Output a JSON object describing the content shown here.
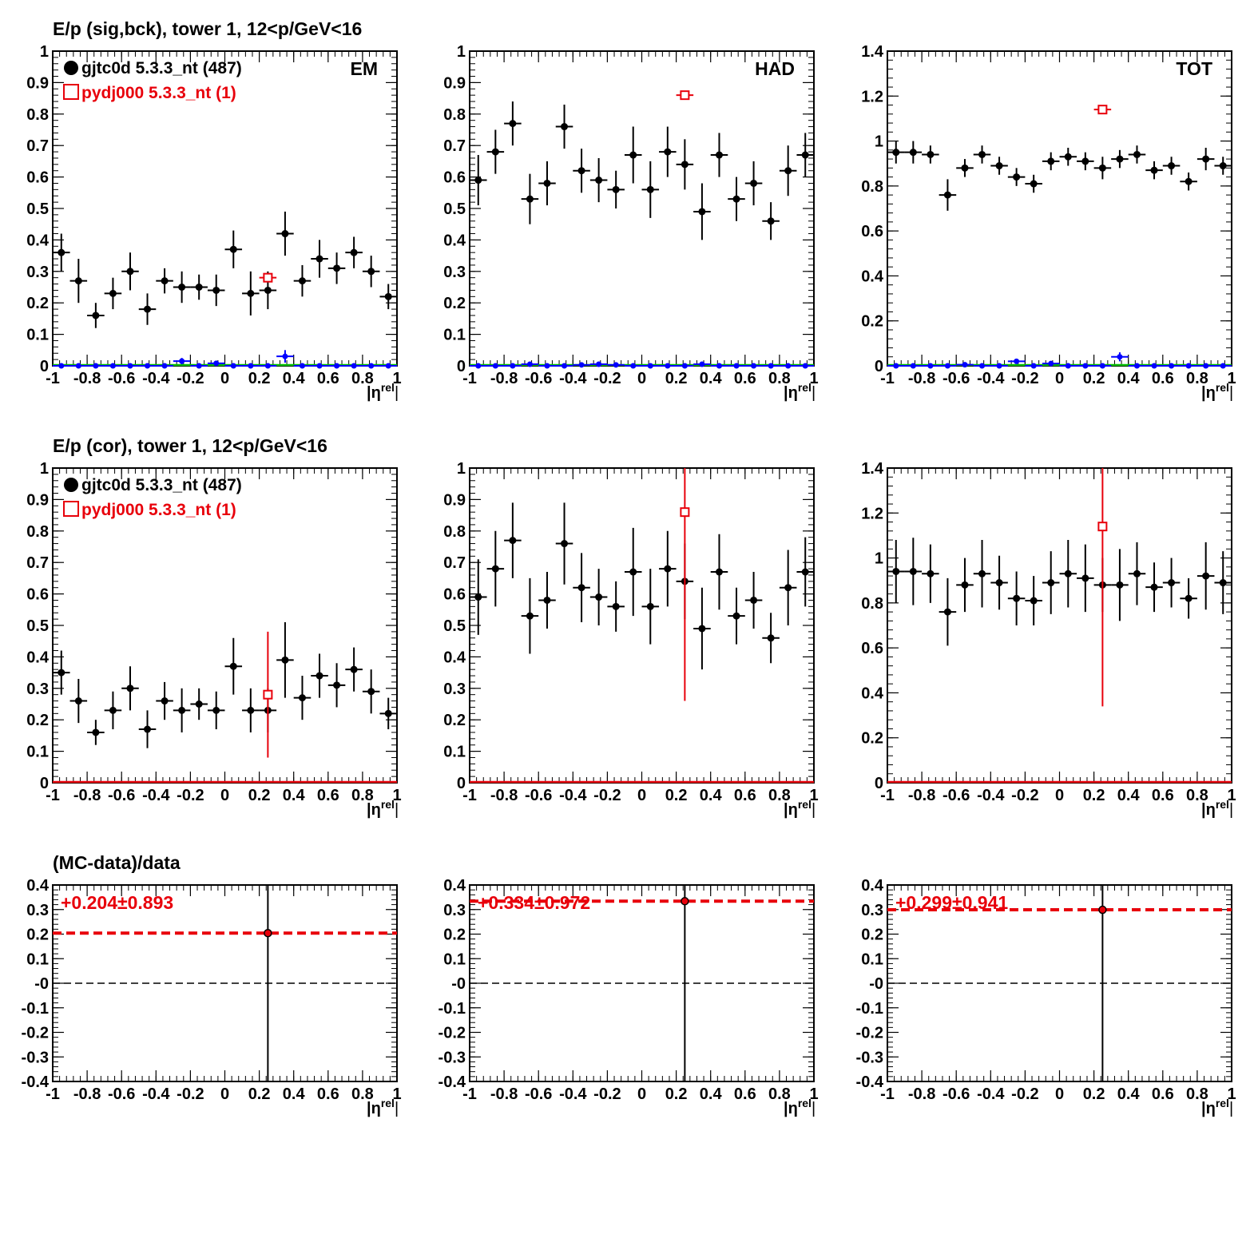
{
  "rows": [
    {
      "title": "E/p (sig,bck), tower 1, 12<p/GeV<16"
    },
    {
      "title": "E/p (cor), tower 1, 12<p/GeV<16"
    },
    {
      "title": "(MC-data)/data"
    }
  ],
  "legend": {
    "data_label": "gjtc0d 5.3.3_nt (487)",
    "mc_label": "pydj000 5.3.3_nt (1)"
  },
  "xlabel": "|η^rel|",
  "x_ticks": [
    "-1",
    "-0.8",
    "-0.6",
    "-0.4",
    "-0.2",
    "0",
    "0.2",
    "0.4",
    "0.6",
    "0.8",
    "1"
  ],
  "colors": {
    "data": "#000000",
    "mc": "#e8000b",
    "bck": "#0000ff",
    "zero": "#00c000"
  },
  "chart_data": [
    {
      "id": "sig-em",
      "type": "scatter",
      "panel_label": "EM",
      "ylim": [
        0,
        1
      ],
      "xlim": [
        -1,
        1
      ],
      "y_ticks": [
        "0",
        "0.1",
        "0.2",
        "0.3",
        "0.4",
        "0.5",
        "0.6",
        "0.7",
        "0.8",
        "0.9",
        "1"
      ],
      "legend": "top-left",
      "series": [
        {
          "name": "gjtc0d 5.3.3_nt (487)",
          "x": [
            -0.95,
            -0.85,
            -0.75,
            -0.65,
            -0.55,
            -0.45,
            -0.35,
            -0.25,
            -0.15,
            -0.05,
            0.05,
            0.15,
            0.25,
            0.35,
            0.45,
            0.55,
            0.65,
            0.75,
            0.85,
            0.95
          ],
          "y": [
            0.36,
            0.27,
            0.16,
            0.23,
            0.3,
            0.18,
            0.27,
            0.25,
            0.25,
            0.24,
            0.37,
            0.23,
            0.24,
            0.42,
            0.27,
            0.34,
            0.31,
            0.36,
            0.3,
            0.22
          ],
          "err": [
            0.06,
            0.07,
            0.04,
            0.05,
            0.06,
            0.05,
            0.04,
            0.05,
            0.04,
            0.05,
            0.06,
            0.07,
            0.06,
            0.07,
            0.05,
            0.06,
            0.05,
            0.05,
            0.05,
            0.04
          ]
        },
        {
          "name": "pydj000 5.3.3_nt (1)",
          "x": [
            0.25
          ],
          "y": [
            0.28
          ],
          "err": [
            0
          ]
        },
        {
          "x": [
            -0.95,
            -0.85,
            -0.75,
            -0.65,
            -0.55,
            -0.45,
            -0.35,
            -0.25,
            -0.15,
            -0.05,
            0.05,
            0.15,
            0.25,
            0.35,
            0.45,
            0.55,
            0.65,
            0.75,
            0.85,
            0.95
          ],
          "y": [
            0.0,
            0.0,
            0.0,
            0.0,
            0.0,
            0.0,
            0.0,
            0.015,
            0.0,
            0.008,
            0.0,
            0.0,
            0.0,
            0.03,
            0.0,
            0.0,
            0.0,
            0.0,
            0.0,
            0.0
          ],
          "err": [
            0,
            0,
            0,
            0,
            0,
            0,
            0,
            0.01,
            0,
            0,
            0,
            0,
            0,
            0.02,
            0,
            0,
            0,
            0,
            0,
            0
          ]
        }
      ]
    },
    {
      "id": "sig-had",
      "type": "scatter",
      "panel_label": "HAD",
      "ylim": [
        0,
        1
      ],
      "xlim": [
        -1,
        1
      ],
      "y_ticks": [
        "0",
        "0.1",
        "0.2",
        "0.3",
        "0.4",
        "0.5",
        "0.6",
        "0.7",
        "0.8",
        "0.9",
        "1"
      ],
      "series": [
        {
          "name": "gjtc0d 5.3.3_nt (487)",
          "x": [
            -0.95,
            -0.85,
            -0.75,
            -0.65,
            -0.55,
            -0.45,
            -0.35,
            -0.25,
            -0.15,
            -0.05,
            0.05,
            0.15,
            0.25,
            0.35,
            0.45,
            0.55,
            0.65,
            0.75,
            0.85,
            0.95
          ],
          "y": [
            0.59,
            0.68,
            0.77,
            0.53,
            0.58,
            0.76,
            0.62,
            0.59,
            0.56,
            0.67,
            0.56,
            0.68,
            0.64,
            0.49,
            0.67,
            0.53,
            0.58,
            0.46,
            0.62,
            0.67
          ],
          "err": [
            0.08,
            0.07,
            0.07,
            0.08,
            0.07,
            0.07,
            0.07,
            0.07,
            0.06,
            0.09,
            0.09,
            0.08,
            0.08,
            0.09,
            0.07,
            0.07,
            0.07,
            0.06,
            0.08,
            0.07
          ]
        },
        {
          "name": "pydj000 5.3.3_nt (1)",
          "x": [
            0.25
          ],
          "y": [
            0.86
          ],
          "err": [
            0
          ]
        },
        {
          "x": [
            -0.95,
            -0.85,
            -0.75,
            -0.65,
            -0.55,
            -0.45,
            -0.35,
            -0.25,
            -0.15,
            -0.05,
            0.05,
            0.15,
            0.25,
            0.35,
            0.45,
            0.55,
            0.65,
            0.75,
            0.85,
            0.95
          ],
          "y": [
            0,
            0,
            0,
            0.005,
            0,
            0,
            0.003,
            0.005,
            0.003,
            0,
            0,
            0,
            0,
            0.005,
            0,
            0,
            0,
            0,
            0,
            0
          ],
          "err": [
            0,
            0,
            0,
            0,
            0,
            0,
            0,
            0,
            0,
            0,
            0,
            0,
            0,
            0,
            0,
            0,
            0,
            0,
            0,
            0
          ]
        }
      ]
    },
    {
      "id": "sig-tot",
      "type": "scatter",
      "panel_label": "TOT",
      "ylim": [
        0,
        1.4
      ],
      "xlim": [
        -1,
        1
      ],
      "y_ticks": [
        "0",
        "0.2",
        "0.4",
        "0.6",
        "0.8",
        "1",
        "1.2",
        "1.4"
      ],
      "series": [
        {
          "name": "gjtc0d 5.3.3_nt (487)",
          "x": [
            -0.95,
            -0.85,
            -0.75,
            -0.65,
            -0.55,
            -0.45,
            -0.35,
            -0.25,
            -0.15,
            -0.05,
            0.05,
            0.15,
            0.25,
            0.35,
            0.45,
            0.55,
            0.65,
            0.75,
            0.85,
            0.95
          ],
          "y": [
            0.95,
            0.95,
            0.94,
            0.76,
            0.88,
            0.94,
            0.89,
            0.84,
            0.81,
            0.91,
            0.93,
            0.91,
            0.88,
            0.92,
            0.94,
            0.87,
            0.89,
            0.82,
            0.92,
            0.89
          ],
          "err": [
            0.05,
            0.05,
            0.04,
            0.07,
            0.04,
            0.04,
            0.04,
            0.04,
            0.04,
            0.04,
            0.04,
            0.04,
            0.05,
            0.04,
            0.04,
            0.04,
            0.04,
            0.04,
            0.05,
            0.04
          ]
        },
        {
          "name": "pydj000 5.3.3_nt (1)",
          "x": [
            0.25
          ],
          "y": [
            1.14
          ],
          "err": [
            0
          ]
        },
        {
          "x": [
            -0.95,
            -0.85,
            -0.75,
            -0.65,
            -0.55,
            -0.45,
            -0.35,
            -0.25,
            -0.15,
            -0.05,
            0.05,
            0.15,
            0.25,
            0.35,
            0.45,
            0.55,
            0.65,
            0.75,
            0.85,
            0.95
          ],
          "y": [
            0,
            0,
            0,
            0,
            0.005,
            0,
            0,
            0.02,
            0,
            0.01,
            0,
            0,
            0,
            0.04,
            0,
            0,
            0,
            0,
            0,
            0
          ],
          "err": [
            0,
            0,
            0,
            0,
            0,
            0,
            0,
            0.01,
            0,
            0,
            0,
            0,
            0,
            0.02,
            0,
            0,
            0,
            0,
            0,
            0
          ]
        }
      ]
    },
    {
      "id": "cor-em",
      "type": "scatter",
      "ylim": [
        0,
        1
      ],
      "xlim": [
        -1,
        1
      ],
      "y_ticks": [
        "0",
        "0.1",
        "0.2",
        "0.3",
        "0.4",
        "0.5",
        "0.6",
        "0.7",
        "0.8",
        "0.9",
        "1"
      ],
      "legend": "top-left",
      "series": [
        {
          "name": "gjtc0d 5.3.3_nt (487)",
          "x": [
            -0.95,
            -0.85,
            -0.75,
            -0.65,
            -0.55,
            -0.45,
            -0.35,
            -0.25,
            -0.15,
            -0.05,
            0.05,
            0.15,
            0.25,
            0.35,
            0.45,
            0.55,
            0.65,
            0.75,
            0.85,
            0.95
          ],
          "y": [
            0.35,
            0.26,
            0.16,
            0.23,
            0.3,
            0.17,
            0.26,
            0.23,
            0.25,
            0.23,
            0.37,
            0.23,
            0.23,
            0.39,
            0.27,
            0.34,
            0.31,
            0.36,
            0.29,
            0.22
          ],
          "err": [
            0.07,
            0.07,
            0.04,
            0.06,
            0.07,
            0.06,
            0.06,
            0.07,
            0.05,
            0.06,
            0.09,
            0.07,
            0.07,
            0.12,
            0.07,
            0.07,
            0.07,
            0.07,
            0.07,
            0.05
          ]
        },
        {
          "name": "pydj000 5.3.3_nt (1)",
          "x": [
            0.25
          ],
          "y": [
            0.28
          ],
          "err": [
            0.2
          ]
        }
      ]
    },
    {
      "id": "cor-had",
      "type": "scatter",
      "ylim": [
        0,
        1
      ],
      "xlim": [
        -1,
        1
      ],
      "y_ticks": [
        "0",
        "0.1",
        "0.2",
        "0.3",
        "0.4",
        "0.5",
        "0.6",
        "0.7",
        "0.8",
        "0.9",
        "1"
      ],
      "series": [
        {
          "name": "gjtc0d 5.3.3_nt (487)",
          "x": [
            -0.95,
            -0.85,
            -0.75,
            -0.65,
            -0.55,
            -0.45,
            -0.35,
            -0.25,
            -0.15,
            -0.05,
            0.05,
            0.15,
            0.25,
            0.35,
            0.45,
            0.55,
            0.65,
            0.75,
            0.85,
            0.95
          ],
          "y": [
            0.59,
            0.68,
            0.77,
            0.53,
            0.58,
            0.76,
            0.62,
            0.59,
            0.56,
            0.67,
            0.56,
            0.68,
            0.64,
            0.49,
            0.67,
            0.53,
            0.58,
            0.46,
            0.62,
            0.67
          ],
          "err": [
            0.12,
            0.12,
            0.12,
            0.12,
            0.09,
            0.13,
            0.11,
            0.09,
            0.08,
            0.14,
            0.12,
            0.12,
            0.12,
            0.13,
            0.12,
            0.09,
            0.09,
            0.08,
            0.12,
            0.11
          ]
        },
        {
          "name": "pydj000 5.3.3_nt (1)",
          "x": [
            0.25
          ],
          "y": [
            0.86
          ],
          "err": [
            0.6
          ]
        }
      ]
    },
    {
      "id": "cor-tot",
      "type": "scatter",
      "ylim": [
        0,
        1.4
      ],
      "xlim": [
        -1,
        1
      ],
      "y_ticks": [
        "0",
        "0.2",
        "0.4",
        "0.6",
        "0.8",
        "1",
        "1.2",
        "1.4"
      ],
      "series": [
        {
          "name": "gjtc0d 5.3.3_nt (487)",
          "x": [
            -0.95,
            -0.85,
            -0.75,
            -0.65,
            -0.55,
            -0.45,
            -0.35,
            -0.25,
            -0.15,
            -0.05,
            0.05,
            0.15,
            0.25,
            0.35,
            0.45,
            0.55,
            0.65,
            0.75,
            0.85,
            0.95
          ],
          "y": [
            0.94,
            0.94,
            0.93,
            0.76,
            0.88,
            0.93,
            0.89,
            0.82,
            0.81,
            0.89,
            0.93,
            0.91,
            0.88,
            0.88,
            0.93,
            0.87,
            0.89,
            0.82,
            0.92,
            0.89
          ],
          "err": [
            0.14,
            0.15,
            0.13,
            0.15,
            0.12,
            0.15,
            0.12,
            0.12,
            0.11,
            0.14,
            0.15,
            0.15,
            0.12,
            0.16,
            0.14,
            0.11,
            0.11,
            0.09,
            0.15,
            0.14
          ]
        },
        {
          "name": "pydj000 5.3.3_nt (1)",
          "x": [
            0.25
          ],
          "y": [
            1.14
          ],
          "err": [
            0.8
          ]
        }
      ]
    },
    {
      "id": "ratio-em",
      "type": "scatter",
      "ylim": [
        -0.4,
        0.4
      ],
      "xlim": [
        -1,
        1
      ],
      "y_ticks": [
        "-0.4",
        "-0.3",
        "-0.2",
        "-0.1",
        "-0",
        "0.1",
        "0.2",
        "0.3",
        "0.4"
      ],
      "fit_label": "+0.204±0.893",
      "fit_value": 0.204,
      "series": [
        {
          "x": [
            0.25
          ],
          "y": [
            0.204
          ],
          "err": [
            0.893
          ]
        }
      ]
    },
    {
      "id": "ratio-had",
      "type": "scatter",
      "ylim": [
        -0.4,
        0.4
      ],
      "xlim": [
        -1,
        1
      ],
      "y_ticks": [
        "-0.4",
        "-0.3",
        "-0.2",
        "-0.1",
        "-0",
        "0.1",
        "0.2",
        "0.3",
        "0.4"
      ],
      "fit_label": "+0.334±0.972",
      "fit_value": 0.334,
      "series": [
        {
          "x": [
            0.25
          ],
          "y": [
            0.334
          ],
          "err": [
            0.972
          ]
        }
      ]
    },
    {
      "id": "ratio-tot",
      "type": "scatter",
      "ylim": [
        -0.4,
        0.4
      ],
      "xlim": [
        -1,
        1
      ],
      "y_ticks": [
        "-0.4",
        "-0.3",
        "-0.2",
        "-0.1",
        "-0",
        "0.1",
        "0.2",
        "0.3",
        "0.4"
      ],
      "fit_label": "+0.299±0.941",
      "fit_value": 0.299,
      "series": [
        {
          "x": [
            0.25
          ],
          "y": [
            0.299
          ],
          "err": [
            0.941
          ]
        }
      ]
    }
  ]
}
